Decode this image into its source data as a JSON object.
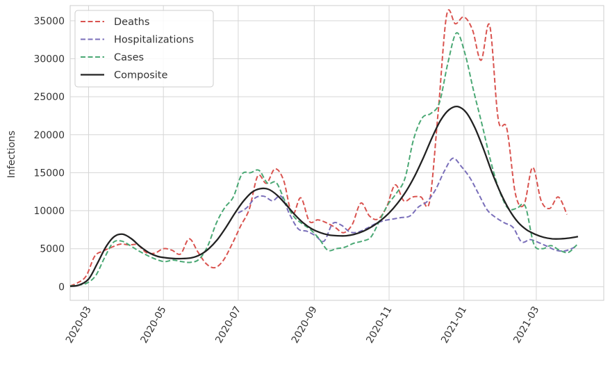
{
  "chart_data": {
    "type": "line",
    "title": "",
    "xlabel": "",
    "ylabel": "Infections",
    "xlim": [
      "2020-02-15",
      "2021-04-25"
    ],
    "ylim": [
      -1800,
      37000
    ],
    "grid": true,
    "legend_position": "top-left",
    "x_ticks": [
      "2020-03",
      "2020-05",
      "2020-07",
      "2020-09",
      "2020-11",
      "2021-01",
      "2021-03"
    ],
    "y_ticks": [
      0,
      5000,
      10000,
      15000,
      20000,
      25000,
      30000,
      35000
    ],
    "y_tick_labels": [
      "0",
      "5000",
      "10000",
      "15000",
      "20000",
      "25000",
      "30000",
      "35000"
    ],
    "series": [
      {
        "name": "Deaths",
        "color": "#d9534f",
        "style": "dashed",
        "points": [
          [
            "2020-02-15",
            100
          ],
          [
            "2020-02-21",
            500
          ],
          [
            "2020-02-28",
            1400
          ],
          [
            "2020-03-06",
            4000
          ],
          [
            "2020-03-13",
            4700
          ],
          [
            "2020-03-20",
            5200
          ],
          [
            "2020-03-27",
            5600
          ],
          [
            "2020-04-03",
            5500
          ],
          [
            "2020-04-10",
            5500
          ],
          [
            "2020-04-17",
            4500
          ],
          [
            "2020-04-24",
            4400
          ],
          [
            "2020-05-01",
            5000
          ],
          [
            "2020-05-08",
            4800
          ],
          [
            "2020-05-15",
            4300
          ],
          [
            "2020-05-22",
            6300
          ],
          [
            "2020-05-29",
            4600
          ],
          [
            "2020-06-05",
            3000
          ],
          [
            "2020-06-12",
            2500
          ],
          [
            "2020-06-19",
            3500
          ],
          [
            "2020-06-26",
            5600
          ],
          [
            "2020-07-03",
            8000
          ],
          [
            "2020-07-10",
            10200
          ],
          [
            "2020-07-17",
            14600
          ],
          [
            "2020-07-24",
            13600
          ],
          [
            "2020-07-31",
            15500
          ],
          [
            "2020-08-07",
            14000
          ],
          [
            "2020-08-14",
            9500
          ],
          [
            "2020-08-21",
            11700
          ],
          [
            "2020-08-28",
            8600
          ],
          [
            "2020-09-04",
            8800
          ],
          [
            "2020-09-11",
            8400
          ],
          [
            "2020-09-18",
            7800
          ],
          [
            "2020-09-25",
            7100
          ],
          [
            "2020-10-02",
            8200
          ],
          [
            "2020-10-09",
            11000
          ],
          [
            "2020-10-16",
            9300
          ],
          [
            "2020-10-23",
            8900
          ],
          [
            "2020-10-30",
            10500
          ],
          [
            "2020-11-06",
            13400
          ],
          [
            "2020-11-13",
            11300
          ],
          [
            "2020-11-20",
            11800
          ],
          [
            "2020-11-27",
            11800
          ],
          [
            "2020-12-04",
            11200
          ],
          [
            "2020-12-11",
            23000
          ],
          [
            "2020-12-18",
            35800
          ],
          [
            "2020-12-25",
            34600
          ],
          [
            "2021-01-01",
            35500
          ],
          [
            "2021-01-08",
            33800
          ],
          [
            "2021-01-15",
            29800
          ],
          [
            "2021-01-22",
            34400
          ],
          [
            "2021-01-29",
            22000
          ],
          [
            "2021-02-05",
            20800
          ],
          [
            "2021-02-12",
            12200
          ],
          [
            "2021-02-19",
            10800
          ],
          [
            "2021-02-26",
            15700
          ],
          [
            "2021-03-05",
            11300
          ],
          [
            "2021-03-12",
            10300
          ],
          [
            "2021-03-19",
            11800
          ],
          [
            "2021-03-26",
            9500
          ]
        ]
      },
      {
        "name": "Hospitalizations",
        "color": "#7a6fba",
        "style": "dashed",
        "points": [
          [
            "2020-07-01",
            9700
          ],
          [
            "2020-07-08",
            10400
          ],
          [
            "2020-07-15",
            11700
          ],
          [
            "2020-07-22",
            11900
          ],
          [
            "2020-07-29",
            11300
          ],
          [
            "2020-08-05",
            11900
          ],
          [
            "2020-08-12",
            9500
          ],
          [
            "2020-08-19",
            7600
          ],
          [
            "2020-08-26",
            7300
          ],
          [
            "2020-09-02",
            6700
          ],
          [
            "2020-09-09",
            6000
          ],
          [
            "2020-09-16",
            8300
          ],
          [
            "2020-09-23",
            8100
          ],
          [
            "2020-09-30",
            7200
          ],
          [
            "2020-10-07",
            7200
          ],
          [
            "2020-10-14",
            7700
          ],
          [
            "2020-10-21",
            8300
          ],
          [
            "2020-10-28",
            8700
          ],
          [
            "2020-11-04",
            8900
          ],
          [
            "2020-11-11",
            9100
          ],
          [
            "2020-11-18",
            9300
          ],
          [
            "2020-11-25",
            10500
          ],
          [
            "2020-12-02",
            11200
          ],
          [
            "2020-12-09",
            12800
          ],
          [
            "2020-12-16",
            15200
          ],
          [
            "2020-12-23",
            16900
          ],
          [
            "2020-12-30",
            15800
          ],
          [
            "2021-01-06",
            14300
          ],
          [
            "2021-01-13",
            12200
          ],
          [
            "2021-01-20",
            10100
          ],
          [
            "2021-01-27",
            9100
          ],
          [
            "2021-02-03",
            8400
          ],
          [
            "2021-02-10",
            7800
          ],
          [
            "2021-02-17",
            5900
          ],
          [
            "2021-02-24",
            6200
          ],
          [
            "2021-03-03",
            5800
          ],
          [
            "2021-03-10",
            5300
          ],
          [
            "2021-03-17",
            4800
          ],
          [
            "2021-03-24",
            4700
          ],
          [
            "2021-03-31",
            5100
          ],
          [
            "2021-04-03",
            5500
          ]
        ]
      },
      {
        "name": "Cases",
        "color": "#4aa874",
        "style": "dashed",
        "points": [
          [
            "2020-02-15",
            100
          ],
          [
            "2020-02-22",
            200
          ],
          [
            "2020-02-29",
            500
          ],
          [
            "2020-03-07",
            1500
          ],
          [
            "2020-03-14",
            3800
          ],
          [
            "2020-03-21",
            5800
          ],
          [
            "2020-03-28",
            6000
          ],
          [
            "2020-04-04",
            5400
          ],
          [
            "2020-04-11",
            4700
          ],
          [
            "2020-04-18",
            4100
          ],
          [
            "2020-04-25",
            3600
          ],
          [
            "2020-05-02",
            3300
          ],
          [
            "2020-05-09",
            3500
          ],
          [
            "2020-05-16",
            3300
          ],
          [
            "2020-05-23",
            3200
          ],
          [
            "2020-05-30",
            3600
          ],
          [
            "2020-06-06",
            5300
          ],
          [
            "2020-06-13",
            8300
          ],
          [
            "2020-06-20",
            10400
          ],
          [
            "2020-06-27",
            11800
          ],
          [
            "2020-07-04",
            14800
          ],
          [
            "2020-07-11",
            15000
          ],
          [
            "2020-07-18",
            15300
          ],
          [
            "2020-07-25",
            13600
          ],
          [
            "2020-08-01",
            13700
          ],
          [
            "2020-08-08",
            11300
          ],
          [
            "2020-08-15",
            9300
          ],
          [
            "2020-08-22",
            8300
          ],
          [
            "2020-08-29",
            7500
          ],
          [
            "2020-09-05",
            6300
          ],
          [
            "2020-09-12",
            4800
          ],
          [
            "2020-09-19",
            5000
          ],
          [
            "2020-09-26",
            5200
          ],
          [
            "2020-10-03",
            5700
          ],
          [
            "2020-10-10",
            6000
          ],
          [
            "2020-10-17",
            6500
          ],
          [
            "2020-10-24",
            8600
          ],
          [
            "2020-10-31",
            10800
          ],
          [
            "2020-11-07",
            12300
          ],
          [
            "2020-11-14",
            14300
          ],
          [
            "2020-11-21",
            19400
          ],
          [
            "2020-11-28",
            22200
          ],
          [
            "2020-12-05",
            22800
          ],
          [
            "2020-12-12",
            24200
          ],
          [
            "2020-12-19",
            29500
          ],
          [
            "2020-12-26",
            33400
          ],
          [
            "2021-01-02",
            30600
          ],
          [
            "2021-01-09",
            25700
          ],
          [
            "2021-01-16",
            21200
          ],
          [
            "2021-01-23",
            16400
          ],
          [
            "2021-01-30",
            12600
          ],
          [
            "2021-02-06",
            10300
          ],
          [
            "2021-02-13",
            10300
          ],
          [
            "2021-02-20",
            10600
          ],
          [
            "2021-02-27",
            5600
          ],
          [
            "2021-03-06",
            5000
          ],
          [
            "2021-03-13",
            5400
          ],
          [
            "2021-03-20",
            4800
          ],
          [
            "2021-03-27",
            4500
          ],
          [
            "2021-04-03",
            5500
          ]
        ]
      },
      {
        "name": "Composite",
        "color": "#222222",
        "style": "solid",
        "points": [
          [
            "2020-02-15",
            50
          ],
          [
            "2020-02-22",
            200
          ],
          [
            "2020-03-01",
            1000
          ],
          [
            "2020-03-08",
            3000
          ],
          [
            "2020-03-15",
            5200
          ],
          [
            "2020-03-22",
            6600
          ],
          [
            "2020-03-29",
            6900
          ],
          [
            "2020-04-05",
            6300
          ],
          [
            "2020-04-12",
            5300
          ],
          [
            "2020-04-19",
            4500
          ],
          [
            "2020-04-26",
            4000
          ],
          [
            "2020-05-03",
            3800
          ],
          [
            "2020-05-10",
            3700
          ],
          [
            "2020-05-17",
            3700
          ],
          [
            "2020-05-24",
            3800
          ],
          [
            "2020-05-31",
            4200
          ],
          [
            "2020-06-07",
            5000
          ],
          [
            "2020-06-14",
            6200
          ],
          [
            "2020-06-21",
            7800
          ],
          [
            "2020-06-28",
            9600
          ],
          [
            "2020-07-05",
            11200
          ],
          [
            "2020-07-12",
            12400
          ],
          [
            "2020-07-19",
            12900
          ],
          [
            "2020-07-26",
            12800
          ],
          [
            "2020-08-02",
            12000
          ],
          [
            "2020-08-09",
            10800
          ],
          [
            "2020-08-16",
            9500
          ],
          [
            "2020-08-23",
            8400
          ],
          [
            "2020-08-30",
            7600
          ],
          [
            "2020-09-06",
            7100
          ],
          [
            "2020-09-13",
            6800
          ],
          [
            "2020-09-20",
            6700
          ],
          [
            "2020-09-27",
            6700
          ],
          [
            "2020-10-04",
            6900
          ],
          [
            "2020-10-11",
            7300
          ],
          [
            "2020-10-18",
            7900
          ],
          [
            "2020-10-25",
            8700
          ],
          [
            "2020-11-01",
            9700
          ],
          [
            "2020-11-08",
            11000
          ],
          [
            "2020-11-15",
            12600
          ],
          [
            "2020-11-22",
            14600
          ],
          [
            "2020-11-29",
            17000
          ],
          [
            "2020-12-06",
            19600
          ],
          [
            "2020-12-13",
            21900
          ],
          [
            "2020-12-20",
            23300
          ],
          [
            "2020-12-27",
            23700
          ],
          [
            "2021-01-03",
            22900
          ],
          [
            "2021-01-10",
            20900
          ],
          [
            "2021-01-17",
            18100
          ],
          [
            "2021-01-24",
            15000
          ],
          [
            "2021-01-31",
            12300
          ],
          [
            "2021-02-07",
            10100
          ],
          [
            "2021-02-14",
            8500
          ],
          [
            "2021-02-21",
            7500
          ],
          [
            "2021-02-28",
            6900
          ],
          [
            "2021-03-07",
            6500
          ],
          [
            "2021-03-14",
            6300
          ],
          [
            "2021-03-21",
            6300
          ],
          [
            "2021-03-28",
            6400
          ],
          [
            "2021-04-04",
            6600
          ]
        ]
      }
    ]
  }
}
